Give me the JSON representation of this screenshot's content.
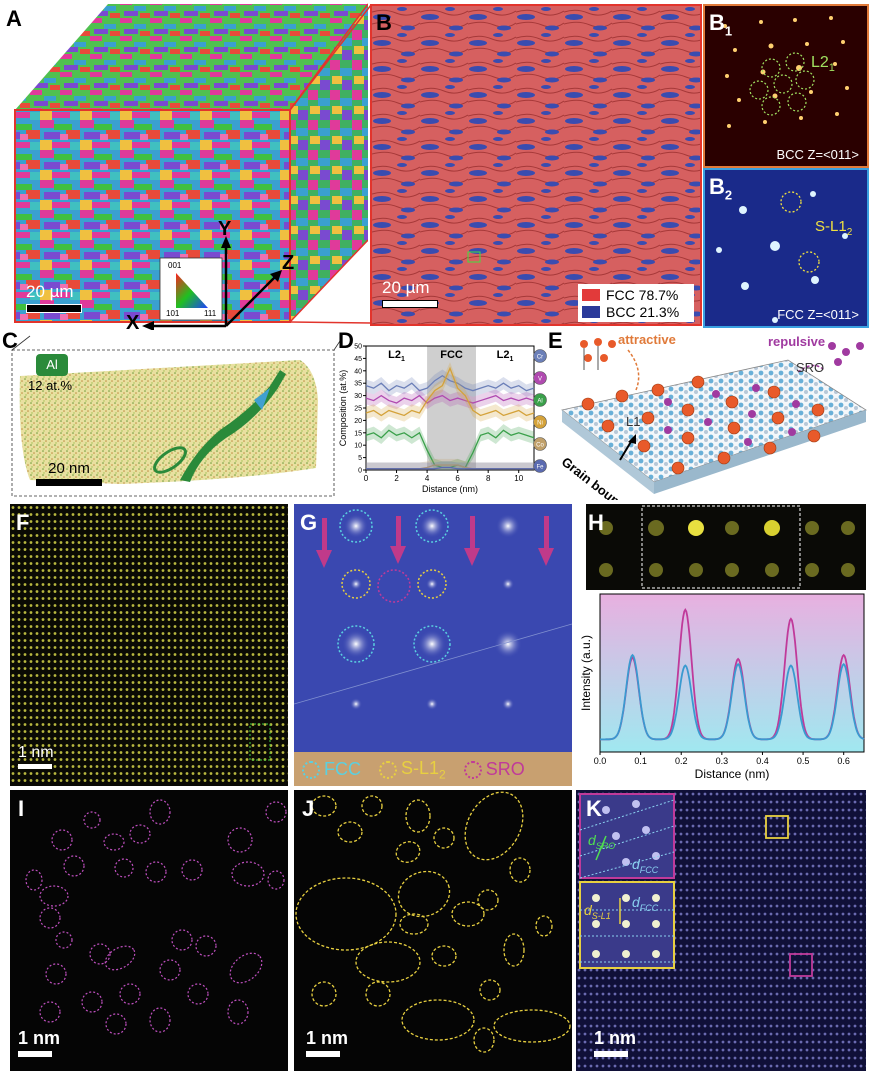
{
  "panels": {
    "A": {
      "label": "A",
      "scale_bar": "20 µm",
      "axes": {
        "x": "X",
        "y": "Y",
        "z": "Z"
      },
      "ipf_key": {
        "top": "001",
        "left": "101",
        "right": "111"
      }
    },
    "B": {
      "label": "B",
      "scale_bar": "20 µm",
      "legend": [
        {
          "name": "FCC 78.7%",
          "color": "#e23a3a"
        },
        {
          "name": "BCC 21.3%",
          "color": "#2a3a9a"
        }
      ]
    },
    "B1": {
      "label": "B",
      "sub": "1",
      "annotation": "L2",
      "annotation_sub": "1",
      "zone": "BCC Z=<011>"
    },
    "B2": {
      "label": "B",
      "sub": "2",
      "annotation": "S-L1",
      "annotation_sub": "2",
      "zone": "FCC Z=<011>"
    },
    "C": {
      "label": "C",
      "element": "Al",
      "conc": "12 at.%",
      "scale_bar": "20 nm"
    },
    "D": {
      "label": "D",
      "regions": [
        "L2",
        "FCC",
        "L2"
      ],
      "region_subs": [
        "1",
        "",
        "1"
      ],
      "elements": [
        "Cr",
        "V",
        "Al",
        "Ni",
        "Co",
        "Fe"
      ],
      "element_colors": [
        "#6b7fb8",
        "#b04ab0",
        "#3aa04a",
        "#d4a23a",
        "#c0a06a",
        "#5a6ab0"
      ]
    },
    "E": {
      "label": "E",
      "attractive": "attractive",
      "repulsive": "repulsive",
      "sro": "SRO",
      "l1": "L1",
      "grain_boundary": "Grain boundary"
    },
    "F": {
      "label": "F",
      "scale_bar": "1 nm"
    },
    "G": {
      "label": "G",
      "legend": [
        "FCC",
        "S-L1",
        "SRO"
      ],
      "legend_sub": [
        "",
        "2",
        ""
      ],
      "legend_colors": [
        "#5ad0e0",
        "#e8d040",
        "#c03a9a"
      ]
    },
    "H": {
      "label": "H"
    },
    "I": {
      "label": "I",
      "scale_bar": "1 nm"
    },
    "J": {
      "label": "J",
      "scale_bar": "1 nm"
    },
    "K": {
      "label": "K",
      "scale_bar": "1 nm",
      "d_sro": "d",
      "d_sro_sub": "SRO",
      "d_fcc": "d",
      "d_fcc_sub": "FCC",
      "d_sl12": "d",
      "d_sl12_sub": "S-L1",
      "d_fcc2": "d",
      "d_fcc2_sub": "FCC"
    }
  },
  "chart_data": [
    {
      "type": "line",
      "panel": "D",
      "xlabel": "Distance (nm)",
      "ylabel": "Composition (at.%)",
      "xlim": [
        0,
        11
      ],
      "ylim": [
        0,
        50
      ],
      "xticks": [
        0,
        2,
        4,
        6,
        8,
        10
      ],
      "yticks": [
        0,
        5,
        10,
        15,
        20,
        25,
        30,
        35,
        40,
        45,
        50
      ],
      "shaded_region": [
        4,
        7.2
      ],
      "x": [
        0,
        0.5,
        1,
        1.5,
        2,
        2.5,
        3,
        3.5,
        4,
        4.5,
        5,
        5.5,
        6,
        6.5,
        7,
        7.5,
        8,
        8.5,
        9,
        9.5,
        10,
        10.5,
        11
      ],
      "series": [
        {
          "name": "Cr",
          "color": "#6b7fb8",
          "values": [
            34,
            33,
            35,
            32,
            34,
            33,
            35,
            32,
            33,
            36,
            38,
            36,
            35,
            33,
            32,
            33,
            34,
            33,
            35,
            33,
            34,
            32,
            33
          ]
        },
        {
          "name": "V",
          "color": "#b04ab0",
          "values": [
            29,
            28,
            30,
            28,
            27,
            29,
            28,
            30,
            27,
            29,
            30,
            28,
            29,
            28,
            27,
            28,
            29,
            30,
            28,
            29,
            28,
            29,
            28
          ]
        },
        {
          "name": "Al",
          "color": "#3aa04a",
          "values": [
            14,
            15,
            13,
            16,
            14,
            15,
            13,
            15,
            8,
            2,
            1,
            1,
            2,
            1,
            7,
            14,
            15,
            13,
            16,
            14,
            15,
            14,
            13
          ]
        },
        {
          "name": "Ni",
          "color": "#d4a23a",
          "values": [
            23,
            24,
            22,
            24,
            23,
            22,
            24,
            23,
            28,
            32,
            34,
            41,
            33,
            30,
            24,
            22,
            23,
            24,
            22,
            23,
            24,
            22,
            23
          ]
        },
        {
          "name": "Co",
          "color": "#c0a06a",
          "values": [
            0.5,
            0.5,
            0.5,
            0.5,
            0.5,
            0.5,
            0.5,
            0.5,
            1,
            2,
            2,
            2,
            2,
            1,
            0.5,
            0.5,
            0.5,
            0.5,
            0.5,
            0.5,
            0.5,
            0.5,
            0.5
          ]
        },
        {
          "name": "Fe",
          "color": "#5a6ab0",
          "values": [
            0.5,
            0.5,
            0.5,
            0.5,
            0.5,
            0.5,
            0.5,
            0.5,
            0.5,
            0.5,
            1,
            1,
            0.5,
            0.5,
            0.5,
            0.5,
            0.5,
            0.5,
            0.5,
            0.5,
            0.5,
            0.5,
            0.5
          ]
        }
      ]
    },
    {
      "type": "line",
      "panel": "H",
      "xlabel": "Distance (nm)",
      "ylabel": "Intensity (a.u.)",
      "xlim": [
        0,
        0.65
      ],
      "xticks": [
        0.0,
        0.1,
        0.2,
        0.3,
        0.4,
        0.5,
        0.6
      ],
      "series": [
        {
          "name": "",
          "color": "#c03a9a",
          "peaks": [
            [
              0.08,
              0.63
            ],
            [
              0.21,
              1.0
            ],
            [
              0.34,
              0.62
            ],
            [
              0.47,
              0.93
            ],
            [
              0.6,
              0.65
            ]
          ]
        },
        {
          "name": "",
          "color": "#3a9ad0",
          "peaks": [
            [
              0.08,
              0.65
            ],
            [
              0.21,
              0.57
            ],
            [
              0.34,
              0.58
            ],
            [
              0.47,
              0.57
            ],
            [
              0.6,
              0.58
            ]
          ]
        }
      ]
    }
  ]
}
